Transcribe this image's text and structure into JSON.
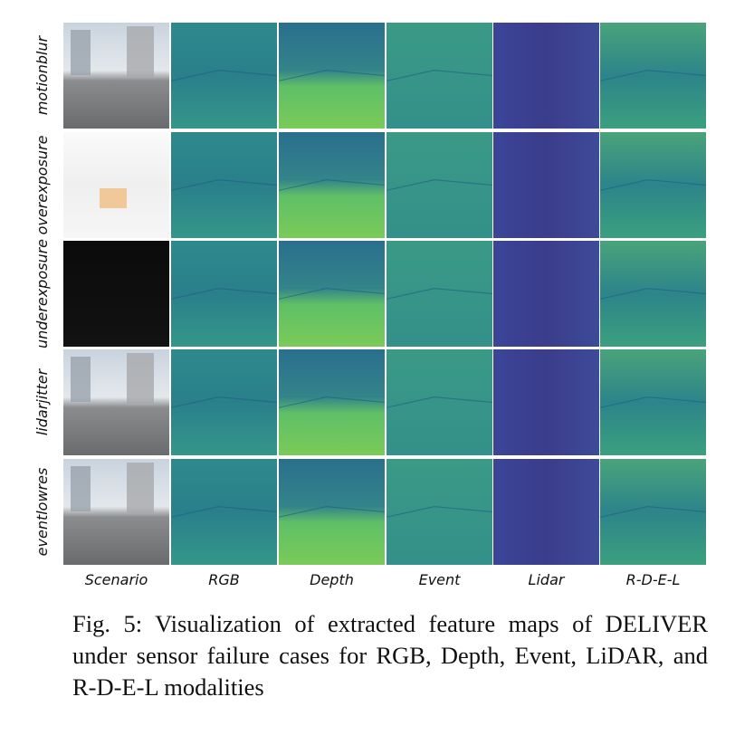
{
  "figure": {
    "rows": [
      "motionblur",
      "overexposure",
      "underexposure",
      "lidarjitter",
      "eventlowres"
    ],
    "columns": [
      "Scenario",
      "RGB",
      "Depth",
      "Event",
      "Lidar",
      "R-D-E-L"
    ],
    "caption": "Fig. 5: Visualization of extracted feature maps of DELIVER under sensor failure cases for RGB, Depth, Event, LiDAR, and R-D-E-L modalities"
  }
}
